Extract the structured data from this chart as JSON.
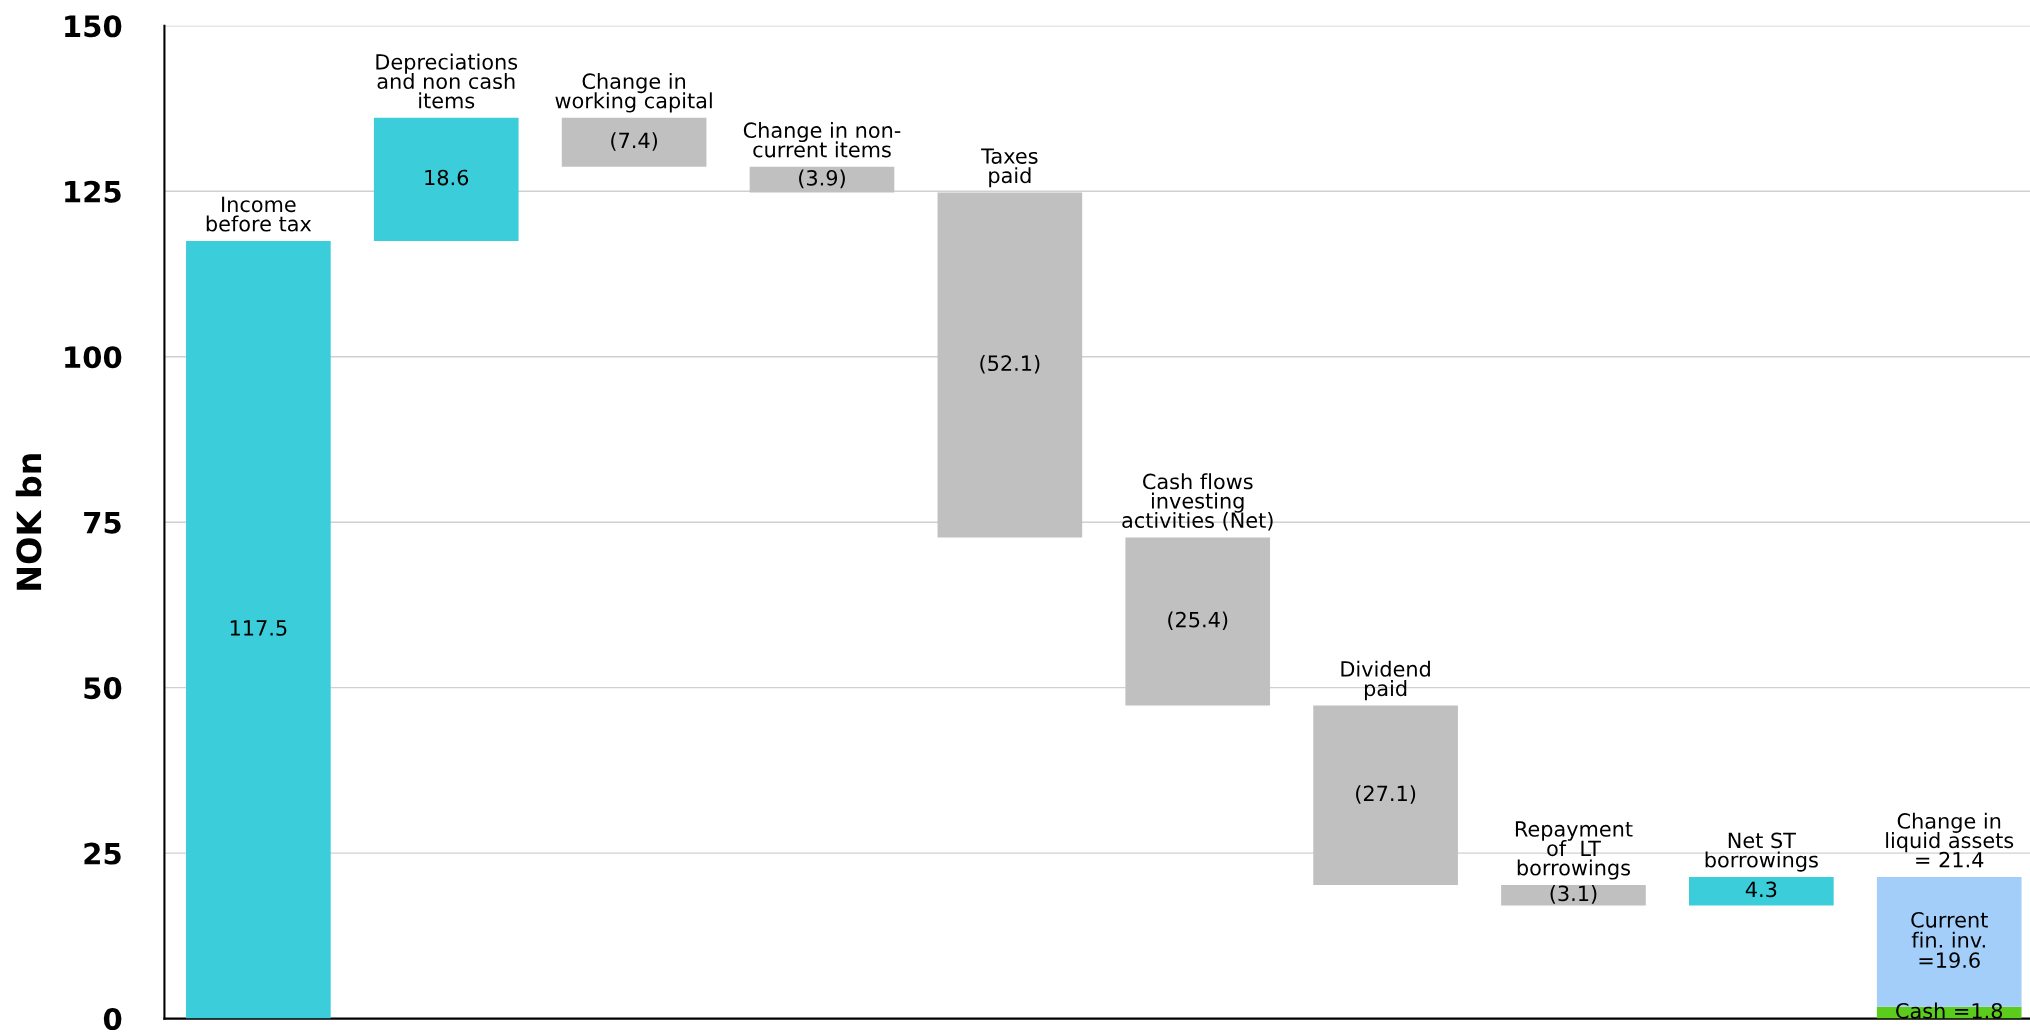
{
  "chart_data": {
    "type": "bar",
    "ylabel": "NOK bn",
    "categories": [
      "Income\nbefore tax",
      "Depreciations\nand non cash\nitems",
      "Change in\nworking capital",
      "Change in non-\ncurrent items",
      "Taxes\npaid",
      "Cash flows\ninvesting\nactivities (Net)",
      "Dividend\npaid",
      "Repayment\nof  LT\nborrowings",
      "Net ST\nborrowings",
      "Change in\nliquid assets\n= 21.4"
    ],
    "series": [
      {
        "values": [
          117.5,
          18.6,
          -7.4,
          -3.9,
          -52.1,
          -25.4,
          -27.1,
          -3.1,
          4.3,
          1.8
        ],
        "base": [
          0,
          117.5,
          136.1,
          128.7,
          124.8,
          72.7,
          47.3,
          20.2,
          17.1,
          0
        ],
        "colors": [
          "#3bcdd9",
          "#3bcdd9",
          "#c0c0c0",
          "#c0c0c0",
          "#c0c0c0",
          "#c0c0c0",
          "#c0c0c0",
          "#c0c0c0",
          "#3bcdd9",
          "#5ccc1c"
        ],
        "value_labels": [
          "117.5",
          "18.6",
          "(7.4)",
          "(3.9)",
          "(52.1)",
          "(25.4)",
          "(27.1)",
          "(3.1)",
          "4.3",
          "Cash =1.8"
        ]
      },
      {
        "values": [
          null,
          null,
          null,
          null,
          null,
          null,
          null,
          null,
          null,
          19.6
        ],
        "base": [
          null,
          null,
          null,
          null,
          null,
          null,
          null,
          null,
          null,
          1.8
        ],
        "colors": [
          null,
          null,
          null,
          null,
          null,
          null,
          null,
          null,
          null,
          "#a3cefa"
        ],
        "value_labels": [
          null,
          null,
          null,
          null,
          null,
          null,
          null,
          null,
          null,
          "Current\nfin. inv.\n=19.6"
        ]
      }
    ],
    "ylim": [
      0,
      150
    ],
    "yticks": [
      0,
      25,
      50,
      75,
      100,
      125,
      150
    ],
    "grid": "y",
    "tick_labels": "y"
  }
}
